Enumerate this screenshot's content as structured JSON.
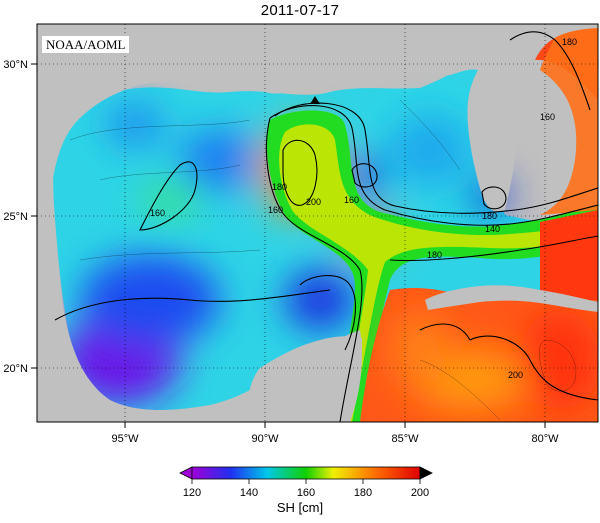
{
  "title": "2011-07-17",
  "credit": "NOAA/AOML",
  "map": {
    "lon_labels": [
      "95°W",
      "90°W",
      "85°W",
      "80°W"
    ],
    "lat_labels": [
      "30°N",
      "25°N",
      "20°N"
    ],
    "land_color": "#c0c0c0",
    "grid": "dotted",
    "contour_labels": [
      "160",
      "180",
      "200",
      "160",
      "180",
      "160",
      "180",
      "140",
      "180",
      "160",
      "200"
    ],
    "marker": "triangle"
  },
  "colorbar": {
    "title": "SH [cm]",
    "ticks": [
      "120",
      "140",
      "160",
      "180",
      "200"
    ],
    "colors": [
      "#8f00cf",
      "#0018e8",
      "#00c8e8",
      "#10d000",
      "#ffff00",
      "#ff7000",
      "#e80000"
    ]
  }
}
